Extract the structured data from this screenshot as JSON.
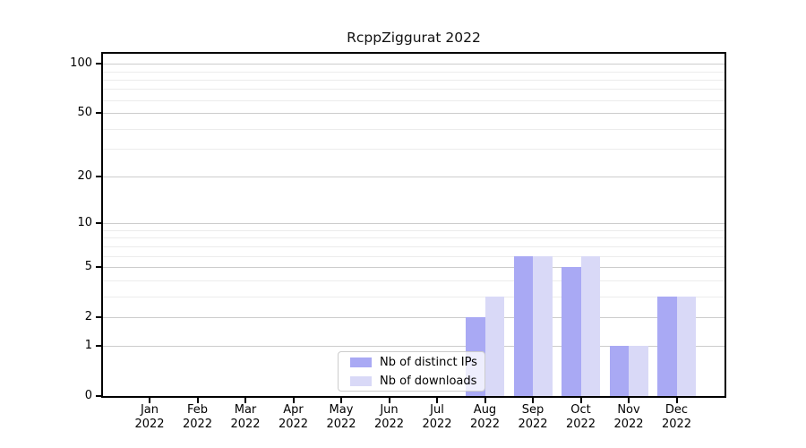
{
  "title": "RcppZiggurat 2022",
  "chart_data": {
    "type": "bar",
    "title": "RcppZiggurat 2022",
    "categories": [
      "Jan 2022",
      "Feb 2022",
      "Mar 2022",
      "Apr 2022",
      "May 2022",
      "Jun 2022",
      "Jul 2022",
      "Aug 2022",
      "Sep 2022",
      "Oct 2022",
      "Nov 2022",
      "Dec 2022"
    ],
    "series": [
      {
        "name": "Nb of distinct IPs",
        "color": "#a9a9f4",
        "values": [
          0,
          0,
          0,
          0,
          0,
          0,
          0,
          2,
          6,
          5,
          1,
          3
        ]
      },
      {
        "name": "Nb of downloads",
        "color": "#d9d9f7",
        "values": [
          0,
          0,
          0,
          0,
          0,
          0,
          0,
          3,
          6,
          6,
          1,
          3
        ]
      }
    ],
    "xlabel": "",
    "ylabel": "",
    "yscale": "log1p",
    "ylim": [
      0,
      115
    ],
    "yticks": [
      0,
      1,
      2,
      5,
      10,
      20,
      50,
      100
    ],
    "minor_gridlines": [
      3,
      4,
      6,
      7,
      8,
      9,
      30,
      40,
      60,
      70,
      80,
      90
    ],
    "grid": true,
    "legend_position": "lower center"
  },
  "colors": {
    "bar_distinct_ips": "#a9a9f4",
    "bar_downloads": "#d9d9f7",
    "grid_major": "#cdcdcd",
    "grid_minor": "#ececec",
    "spine": "#000000",
    "legend_border": "#cccccc",
    "background": "#ffffff"
  }
}
